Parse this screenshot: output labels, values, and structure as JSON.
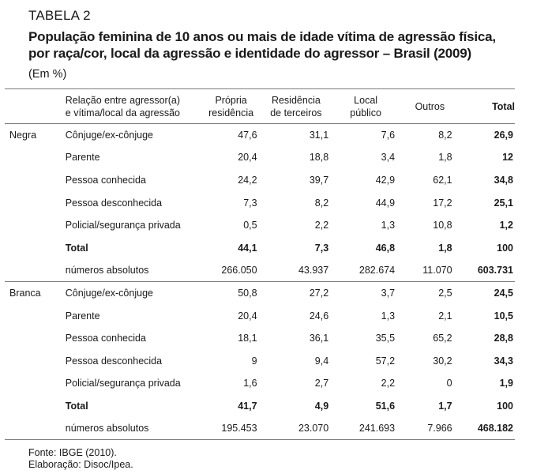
{
  "label": "TABELA 2",
  "title_line1": "População feminina de 10 anos ou mais de idade vítima de agressão física,",
  "title_line2": "por raça/cor, local da agressão e identidade do agressor – Brasil (2009)",
  "unit": "(Em %)",
  "headers": {
    "relation_line1": "Relação entre agressor(a)",
    "relation_line2": "e vítima/local da agressão",
    "col1_line1": "Própria",
    "col1_line2": "residência",
    "col2_line1": "Residência",
    "col2_line2": "de terceiros",
    "col3_line1": "Local",
    "col3_line2": "público",
    "col4": "Outros",
    "col5": "Total"
  },
  "groups": [
    {
      "name": "Negra",
      "rows": [
        {
          "label": "Cônjuge/ex-cônjuge",
          "v": [
            "47,6",
            "31,1",
            "7,6",
            "8,2",
            "26,9"
          ]
        },
        {
          "label": "Parente",
          "v": [
            "20,4",
            "18,8",
            "3,4",
            "1,8",
            "12"
          ]
        },
        {
          "label": "Pessoa conhecida",
          "v": [
            "24,2",
            "39,7",
            "42,9",
            "62,1",
            "34,8"
          ]
        },
        {
          "label": "Pessoa desconhecida",
          "v": [
            "7,3",
            "8,2",
            "44,9",
            "17,2",
            "25,1"
          ]
        },
        {
          "label": "Policial/segurança privada",
          "v": [
            "0,5",
            "2,2",
            "1,3",
            "10,8",
            "1,2"
          ]
        },
        {
          "label": "Total",
          "v": [
            "44,1",
            "7,3",
            "46,8",
            "1,8",
            "100"
          ]
        },
        {
          "label": "números absolutos",
          "v": [
            "266.050",
            "43.937",
            "282.674",
            "11.070",
            "603.731"
          ]
        }
      ]
    },
    {
      "name": "Branca",
      "rows": [
        {
          "label": "Cônjuge/ex-cônjuge",
          "v": [
            "50,8",
            "27,2",
            "3,7",
            "2,5",
            "24,5"
          ]
        },
        {
          "label": "Parente",
          "v": [
            "20,4",
            "24,6",
            "1,3",
            "2,1",
            "10,5"
          ]
        },
        {
          "label": "Pessoa conhecida",
          "v": [
            "18,1",
            "36,1",
            "35,5",
            "65,2",
            "28,8"
          ]
        },
        {
          "label": "Pessoa desconhecida",
          "v": [
            "9",
            "9,4",
            "57,2",
            "30,2",
            "34,3"
          ]
        },
        {
          "label": "Policial/segurança privada",
          "v": [
            "1,6",
            "2,7",
            "2,2",
            "0",
            "1,9"
          ]
        },
        {
          "label": "Total",
          "v": [
            "41,7",
            "4,9",
            "51,6",
            "1,7",
            "100"
          ]
        },
        {
          "label": "números absolutos",
          "v": [
            "195.453",
            "23.070",
            "241.693",
            "7.966",
            "468.182"
          ]
        }
      ]
    }
  ],
  "source": "Fonte: IBGE (2010).",
  "elaboration": "Elaboração: Disoc/Ipea."
}
